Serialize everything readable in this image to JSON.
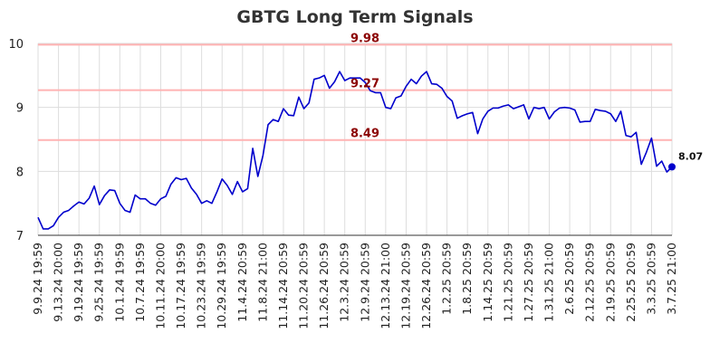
{
  "chart_data": {
    "type": "line",
    "title": "GBTG Long Term Signals",
    "xlabel": "",
    "ylabel": "",
    "ylim": [
      7,
      10
    ],
    "yticks": [
      7,
      8,
      9,
      10
    ],
    "grid": true,
    "colors": {
      "line": "#0000cc",
      "signal": "#ffb3b3",
      "signal_text": "#8b0000",
      "grid": "#dddddd",
      "title": "#333333"
    },
    "x_tick_labels": [
      "9.9.24 19:59",
      "9.13.24 20:00",
      "9.19.24 19:59",
      "9.25.24 19:59",
      "10.1.24 19:59",
      "10.7.24 19:59",
      "10.11.24 20:00",
      "10.17.24 19:59",
      "10.23.24 19:59",
      "10.29.24 19:59",
      "11.4.24 20:59",
      "11.8.24 21:00",
      "11.14.24 20:59",
      "11.20.24 20:59",
      "11.26.24 20:59",
      "12.3.24 20:59",
      "12.9.24 20:59",
      "12.13.24 21:00",
      "12.19.24 20:59",
      "12.26.24 20:59",
      "1.2.25 20:59",
      "1.8.25 20:59",
      "1.14.25 20:59",
      "1.21.25 20:59",
      "1.27.25 20:59",
      "1.31.25 21:00",
      "2.6.25 20:59",
      "2.12.25 20:59",
      "2.19.25 20:59",
      "2.25.25 20:59",
      "3.3.25 20:59",
      "3.7.25 21:00"
    ],
    "signals": [
      {
        "value": 9.98,
        "label": "9.98"
      },
      {
        "value": 9.27,
        "label": "9.27"
      },
      {
        "value": 8.49,
        "label": "8.49"
      }
    ],
    "last_value": {
      "value": 8.07,
      "label": "8.07"
    },
    "series": [
      {
        "values": [
          7.28,
          7.1,
          7.1,
          7.15,
          7.28,
          7.36,
          7.39,
          7.46,
          7.52,
          7.49,
          7.58,
          7.77,
          7.48,
          7.62,
          7.71,
          7.7,
          7.5,
          7.39,
          7.36,
          7.63,
          7.57,
          7.57,
          7.5,
          7.47,
          7.57,
          7.61,
          7.8,
          7.9,
          7.87,
          7.89,
          7.74,
          7.64,
          7.5,
          7.54,
          7.5,
          7.68,
          7.88,
          7.78,
          7.64,
          7.84,
          7.68,
          7.73,
          8.36,
          7.92,
          8.25,
          8.73,
          8.81,
          8.78,
          8.98,
          8.88,
          8.87,
          9.16,
          8.98,
          9.07,
          9.44,
          9.46,
          9.5,
          9.3,
          9.4,
          9.56,
          9.42,
          9.46,
          9.46,
          9.46,
          9.39,
          9.26,
          9.23,
          9.23,
          9.0,
          8.98,
          9.15,
          9.18,
          9.33,
          9.44,
          9.37,
          9.49,
          9.56,
          9.37,
          9.36,
          9.3,
          9.17,
          9.1,
          8.83,
          8.87,
          8.9,
          8.92,
          8.59,
          8.82,
          8.94,
          8.99,
          8.99,
          9.02,
          9.04,
          8.98,
          9.01,
          9.04,
          8.82,
          9.0,
          8.98,
          9.0,
          8.82,
          8.93,
          8.99,
          9.0,
          8.99,
          8.96,
          8.77,
          8.78,
          8.78,
          8.97,
          8.95,
          8.94,
          8.9,
          8.78,
          8.94,
          8.56,
          8.54,
          8.61,
          8.11,
          8.3,
          8.52,
          8.08,
          8.16,
          7.99,
          8.07
        ]
      }
    ]
  }
}
